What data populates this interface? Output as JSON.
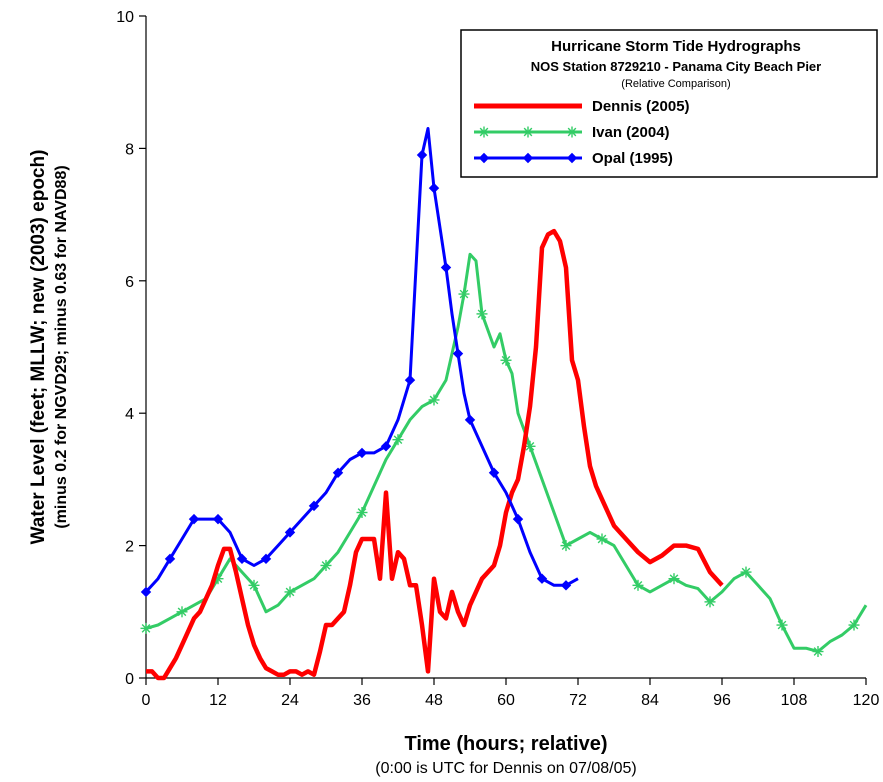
{
  "chart_data": {
    "type": "line",
    "legend": {
      "title": "Hurricane Storm Tide Hydrographs",
      "subtitle": "NOS Station 8729210 - Panama City Beach Pier",
      "note": "(Relative Comparison)",
      "placement": "top-right"
    },
    "xlabel": "Time (hours; relative)",
    "xlabel_note": "(0:00 is UTC for Dennis on 07/08/05)",
    "ylabel": "Water Level (feet; MLLW; new (2003) epoch)",
    "ylabel_note": "(minus 0.2 for NGVD29; minus 0.63 for NAVD88)",
    "xlim": [
      0,
      120
    ],
    "ylim": [
      0,
      10
    ],
    "x_ticks": [
      "0",
      "12",
      "24",
      "36",
      "48",
      "60",
      "72",
      "84",
      "96",
      "108",
      "120"
    ],
    "y_ticks": [
      "0",
      "2",
      "4",
      "6",
      "8",
      "10"
    ],
    "grid": false,
    "series": [
      {
        "name": "Dennis (2005)",
        "color": "#ff0000",
        "marker": "none",
        "x": [
          0,
          1,
          2,
          3,
          4,
          5,
          6,
          7,
          8,
          9,
          10,
          11,
          12,
          13,
          14,
          15,
          16,
          17,
          18,
          19,
          20,
          21,
          22,
          23,
          24,
          25,
          26,
          27,
          28,
          29,
          30,
          31,
          32,
          33,
          34,
          35,
          36,
          37,
          38,
          39,
          40,
          41,
          42,
          43,
          44,
          45,
          46,
          47,
          48,
          49,
          50,
          51,
          52,
          53,
          54,
          55,
          56,
          57,
          58,
          59,
          60,
          61,
          62,
          63,
          64,
          65,
          66,
          67,
          68,
          69,
          70,
          71,
          72,
          73,
          74,
          75,
          76,
          77,
          78,
          79,
          80,
          82,
          84,
          86,
          88,
          90,
          92,
          94,
          96
        ],
        "y": [
          0.1,
          0.1,
          0.0,
          0.0,
          0.15,
          0.3,
          0.5,
          0.7,
          0.9,
          1.0,
          1.2,
          1.4,
          1.7,
          1.95,
          1.95,
          1.6,
          1.2,
          0.8,
          0.5,
          0.3,
          0.15,
          0.1,
          0.05,
          0.05,
          0.1,
          0.1,
          0.05,
          0.1,
          0.05,
          0.4,
          0.8,
          0.8,
          0.9,
          1.0,
          1.4,
          1.9,
          2.1,
          2.1,
          2.1,
          1.5,
          2.8,
          1.5,
          1.9,
          1.8,
          1.4,
          1.4,
          0.8,
          0.1,
          1.5,
          1.0,
          0.9,
          1.3,
          1.0,
          0.8,
          1.1,
          1.3,
          1.5,
          1.6,
          1.7,
          2.0,
          2.5,
          2.8,
          3.0,
          3.5,
          4.1,
          5.0,
          6.5,
          6.7,
          6.75,
          6.6,
          6.2,
          4.8,
          4.5,
          3.8,
          3.2,
          2.9,
          2.7,
          2.5,
          2.3,
          2.2,
          2.1,
          1.9,
          1.75,
          1.85,
          2.0,
          2.0,
          1.95,
          1.6,
          1.4
        ]
      },
      {
        "name": "Ivan (2004)",
        "color": "#33cc66",
        "marker": "asterisk",
        "x": [
          0,
          2,
          4,
          6,
          8,
          10,
          12,
          14,
          16,
          18,
          20,
          22,
          24,
          26,
          28,
          30,
          32,
          34,
          36,
          38,
          40,
          42,
          44,
          46,
          48,
          50,
          52,
          53,
          54,
          55,
          56,
          58,
          59,
          60,
          61,
          62,
          64,
          66,
          68,
          70,
          72,
          74,
          76,
          78,
          80,
          82,
          84,
          86,
          88,
          90,
          92,
          94,
          96,
          98,
          100,
          102,
          104,
          106,
          108,
          110,
          112,
          114,
          116,
          118,
          120
        ],
        "y": [
          0.75,
          0.8,
          0.9,
          1.0,
          1.1,
          1.2,
          1.5,
          1.8,
          1.6,
          1.4,
          1.0,
          1.1,
          1.3,
          1.4,
          1.5,
          1.7,
          1.9,
          2.2,
          2.5,
          2.9,
          3.3,
          3.6,
          3.9,
          4.1,
          4.2,
          4.5,
          5.3,
          5.8,
          6.4,
          6.3,
          5.5,
          5.0,
          5.2,
          4.8,
          4.6,
          4.0,
          3.5,
          3.0,
          2.5,
          2.0,
          2.1,
          2.2,
          2.1,
          2.0,
          1.7,
          1.4,
          1.3,
          1.4,
          1.5,
          1.4,
          1.35,
          1.15,
          1.3,
          1.5,
          1.6,
          1.4,
          1.2,
          0.8,
          0.45,
          0.45,
          0.4,
          0.55,
          0.65,
          0.8,
          1.1
        ]
      },
      {
        "name": "Opal (1995)",
        "color": "#0000ff",
        "marker": "diamond",
        "x": [
          0,
          2,
          4,
          6,
          8,
          10,
          12,
          14,
          16,
          18,
          20,
          22,
          24,
          26,
          28,
          30,
          32,
          34,
          36,
          38,
          40,
          42,
          44,
          45,
          46,
          47,
          48,
          49,
          50,
          51,
          52,
          53,
          54,
          56,
          58,
          60,
          62,
          64,
          66,
          68,
          70,
          72
        ],
        "y": [
          1.3,
          1.5,
          1.8,
          2.1,
          2.4,
          2.4,
          2.4,
          2.2,
          1.8,
          1.7,
          1.8,
          2.0,
          2.2,
          2.4,
          2.6,
          2.8,
          3.1,
          3.3,
          3.4,
          3.4,
          3.5,
          3.9,
          4.5,
          6.2,
          7.9,
          8.3,
          7.4,
          6.8,
          6.2,
          5.5,
          4.9,
          4.3,
          3.9,
          3.5,
          3.1,
          2.8,
          2.4,
          1.9,
          1.5,
          1.4,
          1.4,
          1.5
        ]
      }
    ]
  }
}
